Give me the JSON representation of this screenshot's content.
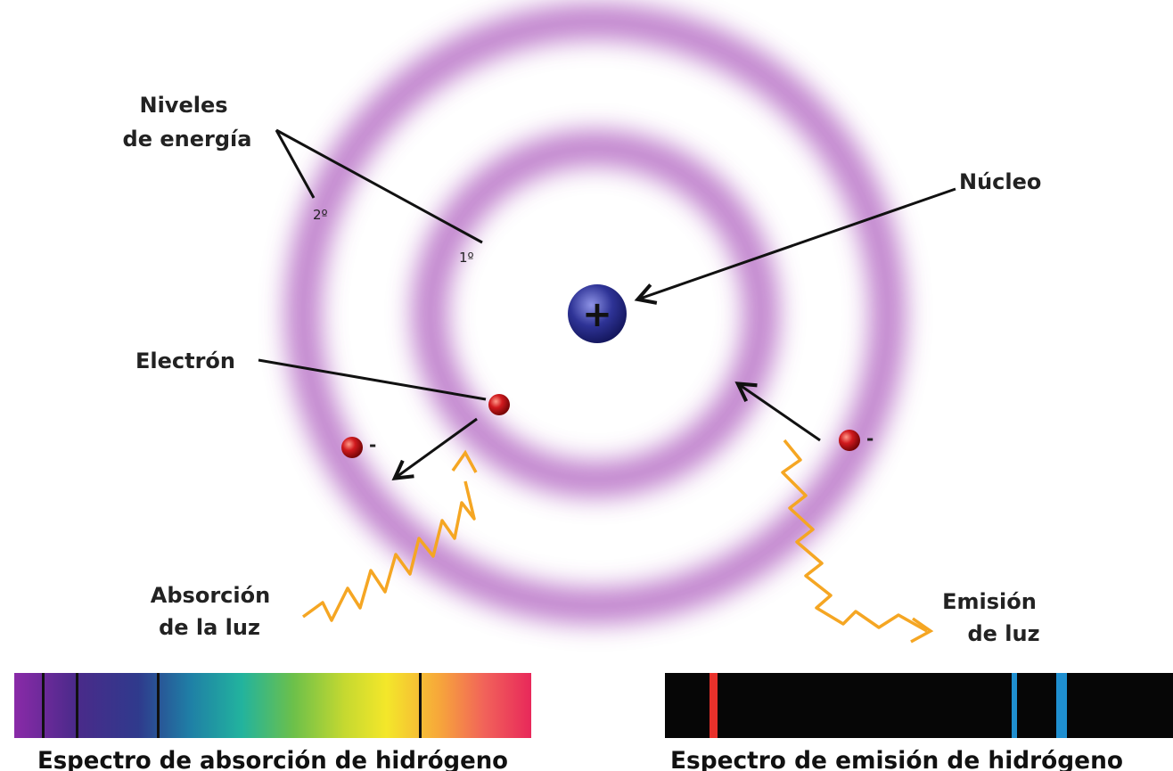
{
  "labels": {
    "energy_levels_line1": "Niveles",
    "energy_levels_line2": "de energía",
    "level_2": "2º",
    "level_1": "1º",
    "nucleus": "Núcleo",
    "nucleus_sign": "+",
    "electron": "Electrón",
    "electron_charge": "-",
    "absorption_line1": "Absorción",
    "absorption_line2": "de la luz",
    "emission_line1": "Emisión",
    "emission_line2": "de luz"
  },
  "captions": {
    "absorption_spectrum": "Espectro de absorción de hidrógeno",
    "emission_spectrum": "Espectro de emisión de hidrógeno"
  },
  "colors": {
    "orbit": "#b56cc4",
    "nucleus": "#2b2f8f",
    "electron": "#c8161b",
    "photon": "#f5a623",
    "emission_red": "#e8312b",
    "emission_blue": "#1f8fd0"
  }
}
